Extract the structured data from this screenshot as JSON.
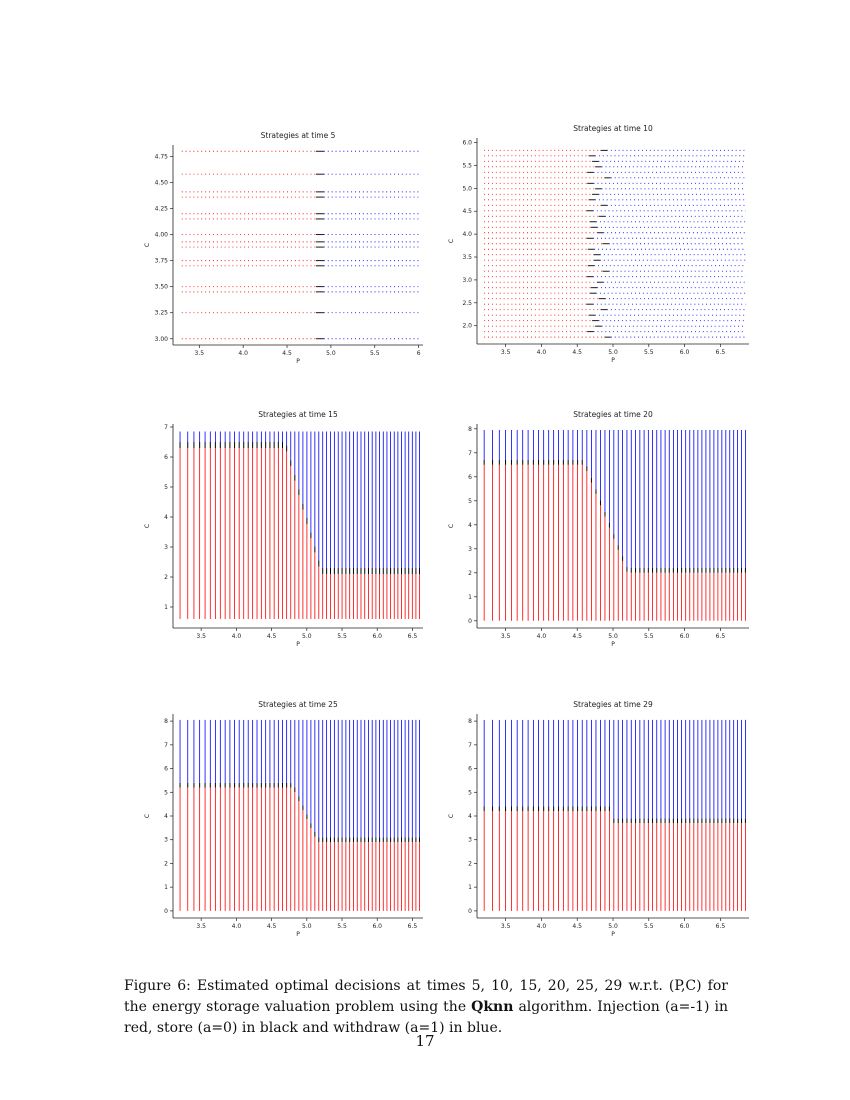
{
  "chart_data": [
    {
      "type": "scatter",
      "title": "Strategies at time 5",
      "xlabel": "P",
      "ylabel": "C",
      "xlim": [
        3.2,
        6.05
      ],
      "ylim": [
        2.94,
        4.86
      ],
      "xticks": [
        3.5,
        4.0,
        4.5,
        5.0,
        5.5,
        6.0
      ],
      "xtick_labels": [
        "3.5",
        "4.0",
        "4.5",
        "5.0",
        "5.5",
        "6"
      ],
      "yticks": [
        3.0,
        3.25,
        3.5,
        3.75,
        4.0,
        4.25,
        4.5,
        4.75
      ],
      "ytick_labels": [
        "3.00",
        "3.25",
        "3.50",
        "3.75",
        "4.00",
        "4.25",
        "4.50",
        "4.75"
      ],
      "grid": false,
      "series": [
        {
          "name": "Injection (a=-1)",
          "color": "#ff0000"
        },
        {
          "name": "store (a=0)",
          "color": "#000000"
        },
        {
          "name": "withdraw (a=1)",
          "color": "#0000ff"
        }
      ]
    },
    {
      "type": "scatter",
      "title": "Strategies at time 10",
      "xlabel": "P",
      "ylabel": "C",
      "xlim": [
        3.1,
        6.9
      ],
      "ylim": [
        1.6,
        6.1
      ],
      "xticks": [
        3.5,
        4.0,
        4.5,
        5.0,
        5.5,
        6.0,
        6.5
      ],
      "xtick_labels": [
        "3.5",
        "4.0",
        "4.5",
        "5.0",
        "5.5",
        "6.0",
        "6.5"
      ],
      "yticks": [
        2.0,
        2.5,
        3.0,
        3.5,
        4.0,
        4.5,
        5.0,
        5.5,
        6.0
      ],
      "ytick_labels": [
        "2.0",
        "2.5",
        "3.0",
        "3.5",
        "4.0",
        "4.5",
        "5.0",
        "5.5",
        "6.0"
      ],
      "grid": false
    },
    {
      "type": "scatter",
      "title": "Strategies at time 15",
      "xlabel": "P",
      "ylabel": "C",
      "xlim": [
        3.1,
        6.65
      ],
      "ylim": [
        0.3,
        7.1
      ],
      "xticks": [
        3.5,
        4.0,
        4.5,
        5.0,
        5.5,
        6.0,
        6.5
      ],
      "xtick_labels": [
        "3.5",
        "4.0",
        "4.5",
        "5.0",
        "5.5",
        "6.0",
        "6.5"
      ],
      "yticks": [
        1,
        2,
        3,
        4,
        5,
        6,
        7
      ],
      "ytick_labels": [
        "1",
        "2",
        "3",
        "4",
        "5",
        "6",
        "7"
      ],
      "grid": false
    },
    {
      "type": "scatter",
      "title": "Strategies at time 20",
      "xlabel": "P",
      "ylabel": "C",
      "xlim": [
        3.1,
        6.9
      ],
      "ylim": [
        -0.3,
        8.2
      ],
      "xticks": [
        3.5,
        4.0,
        4.5,
        5.0,
        5.5,
        6.0,
        6.5
      ],
      "xtick_labels": [
        "3.5",
        "4.0",
        "4.5",
        "5.0",
        "5.5",
        "6.0",
        "6.5"
      ],
      "yticks": [
        0,
        1,
        2,
        3,
        4,
        5,
        6,
        7,
        8
      ],
      "ytick_labels": [
        "0",
        "1",
        "2",
        "3",
        "4",
        "5",
        "6",
        "7",
        "8"
      ],
      "grid": false
    },
    {
      "type": "scatter",
      "title": "Strategies at time 25",
      "xlabel": "P",
      "ylabel": "C",
      "xlim": [
        3.1,
        6.65
      ],
      "ylim": [
        -0.3,
        8.3
      ],
      "xticks": [
        3.5,
        4.0,
        4.5,
        5.0,
        5.5,
        6.0,
        6.5
      ],
      "xtick_labels": [
        "3.5",
        "4.0",
        "4.5",
        "5.0",
        "5.5",
        "6.0",
        "6.5"
      ],
      "yticks": [
        0,
        1,
        2,
        3,
        4,
        5,
        6,
        7,
        8
      ],
      "ytick_labels": [
        "0",
        "1",
        "2",
        "3",
        "4",
        "5",
        "6",
        "7",
        "8"
      ],
      "grid": false
    },
    {
      "type": "scatter",
      "title": "Strategies at time 29",
      "xlabel": "P",
      "ylabel": "C",
      "xlim": [
        3.1,
        6.9
      ],
      "ylim": [
        -0.3,
        8.3
      ],
      "xticks": [
        3.5,
        4.0,
        4.5,
        5.0,
        5.5,
        6.0,
        6.5
      ],
      "xtick_labels": [
        "3.5",
        "4.0",
        "4.5",
        "5.0",
        "5.5",
        "6.0",
        "6.5"
      ],
      "yticks": [
        0,
        1,
        2,
        3,
        4,
        5,
        6,
        7,
        8
      ],
      "ytick_labels": [
        "0",
        "1",
        "2",
        "3",
        "4",
        "5",
        "6",
        "7",
        "8"
      ],
      "grid": false
    }
  ],
  "caption": {
    "label": "Figure 6:",
    "text_before_bold": " Estimated optimal decisions at times 5, 10, 15, 20, 25, 29 w.r.t. (P,C) for the energy storage valuation problem using the ",
    "bold": "Qknn",
    "text_after_bold": " algorithm. Injection (a=-1) in red, store (a=0) in black and withdraw (a=1) in blue."
  },
  "page_number": "17",
  "colors": {
    "injection": "#ff0000",
    "store": "#000000",
    "withdraw": "#0000ff"
  }
}
